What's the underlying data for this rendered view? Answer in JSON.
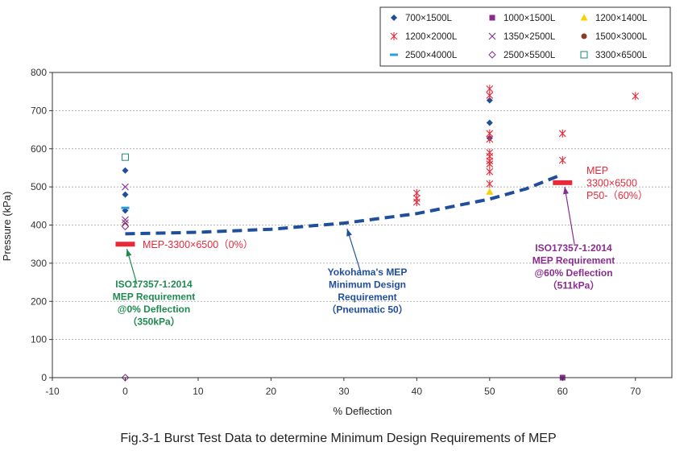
{
  "chart_data": {
    "type": "scatter",
    "caption": "Fig.3-1  Burst Test Data to determine Minimum Design Requirements of MEP",
    "xlabel": "% Deflection",
    "ylabel": "Pressure (kPa)",
    "xlim": [
      -10,
      75
    ],
    "ylim": [
      0,
      800
    ],
    "x_ticks": [
      -10,
      0,
      10,
      20,
      30,
      40,
      50,
      60,
      70
    ],
    "y_ticks": [
      0,
      100,
      200,
      300,
      400,
      500,
      600,
      700,
      800
    ],
    "grid": "horizontal dashed",
    "legend_position": "top-right",
    "series": [
      {
        "name": "700×1500L",
        "marker": "diamond-filled",
        "color": "#1f4e9c",
        "points": [
          [
            0,
            543
          ],
          [
            0,
            480
          ],
          [
            0,
            438
          ],
          [
            50,
            727
          ],
          [
            50,
            668
          ],
          [
            50,
            628
          ]
        ]
      },
      {
        "name": "1000×1500L",
        "marker": "square-filled",
        "color": "#8a2c8f",
        "points": [
          [
            60,
            0
          ]
        ]
      },
      {
        "name": "1200×1400L",
        "marker": "triangle-filled",
        "color": "#f6d200",
        "points": [
          [
            50,
            487
          ]
        ]
      },
      {
        "name": "1200×2000L",
        "marker": "asterisk",
        "color": "#e8293a",
        "points": [
          [
            40,
            484
          ],
          [
            40,
            470
          ],
          [
            40,
            460
          ],
          [
            50,
            757
          ],
          [
            50,
            740
          ],
          [
            50,
            640
          ],
          [
            50,
            625
          ],
          [
            50,
            590
          ],
          [
            50,
            580
          ],
          [
            50,
            568
          ],
          [
            50,
            560
          ],
          [
            50,
            540
          ],
          [
            50,
            508
          ],
          [
            60,
            640
          ],
          [
            60,
            570
          ],
          [
            70,
            738
          ]
        ]
      },
      {
        "name": "1350×2500L",
        "marker": "x",
        "color": "#8a2c8f",
        "points": [
          [
            0,
            500
          ],
          [
            0,
            414
          ],
          [
            0,
            406
          ]
        ]
      },
      {
        "name": "1500×3000L",
        "marker": "circle-filled",
        "color": "#8b3a26",
        "points": [
          [
            0,
            399
          ]
        ]
      },
      {
        "name": "2500×4000L",
        "marker": "dash",
        "color": "#2b9fd9",
        "points": [
          [
            0,
            445
          ]
        ]
      },
      {
        "name": "2500×5500L",
        "marker": "diamond-open",
        "color": "#8a2c8f",
        "points": [
          [
            0,
            396
          ],
          [
            0,
            0
          ]
        ]
      },
      {
        "name": "3300×6500L",
        "marker": "square-open",
        "color": "#1f8a70",
        "points": [
          [
            0,
            578
          ]
        ]
      }
    ],
    "requirement_line": {
      "color": "#1f4e9c",
      "points": [
        [
          0,
          377
        ],
        [
          10,
          381
        ],
        [
          20,
          389
        ],
        [
          30,
          405
        ],
        [
          40,
          430
        ],
        [
          50,
          468
        ],
        [
          55,
          495
        ],
        [
          60,
          533
        ]
      ]
    },
    "requirement_bars": [
      {
        "x": 0,
        "y": 350,
        "color": "#e8293a"
      },
      {
        "x": 60,
        "y": 511,
        "color": "#e8293a"
      }
    ],
    "annotations": {
      "mep_zero_label": "MEP-3300×6500（0%）",
      "mep_sixty_label": [
        "MEP",
        "3300×6500",
        "P50-（60%）"
      ],
      "iso_zero": [
        "ISO17357-1:2014",
        "MEP Requirement",
        "@0% Deflection",
        "（350kPa）"
      ],
      "iso_zero_color": "#1f8a50",
      "yokohama": [
        "Yokohama's MEP",
        "Minimum Design",
        "Requirement",
        "（Pneumatic 50）"
      ],
      "yokohama_color": "#1f4e9c",
      "iso_sixty": [
        "ISO17357-1:2014",
        "MEP Requirement",
        "@60% Deflection",
        "（511kPa）"
      ],
      "iso_sixty_color": "#8a2c8f"
    }
  }
}
